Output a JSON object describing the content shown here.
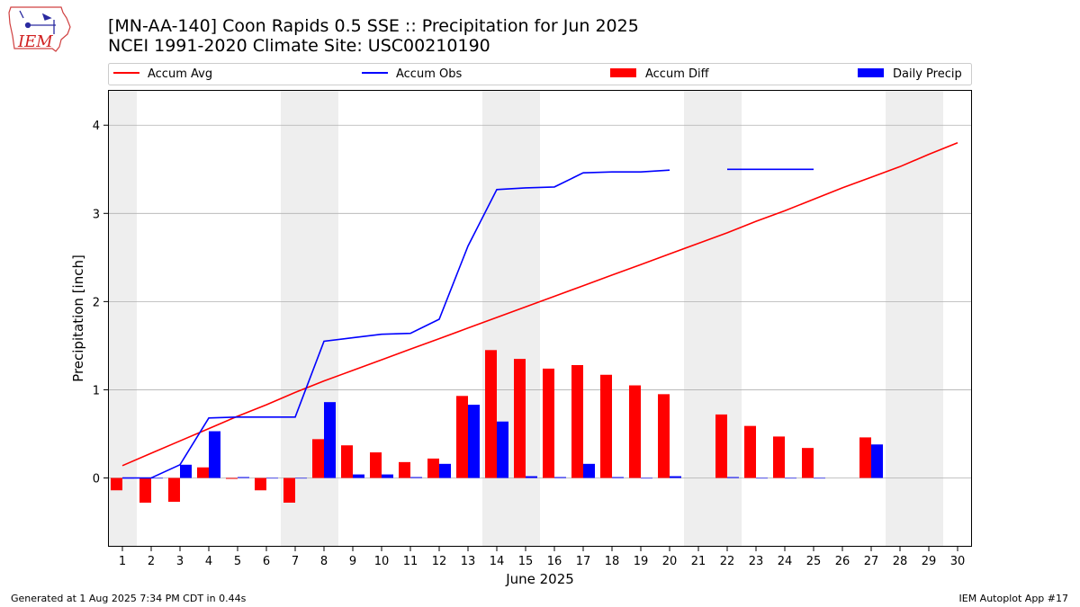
{
  "logo": {
    "text": "IEM"
  },
  "footer": {
    "generated": "Generated at 1 Aug 2025 7:34 PM CDT in 0.44s",
    "app": "IEM Autoplot App #17"
  },
  "colors": {
    "avg": "#ff0000",
    "obs": "#0000ff",
    "diff": "#ff0000",
    "daily": "#0000ff",
    "weekend": "#eeeeee",
    "grid": "#b0b0b0"
  },
  "chart_data": {
    "type": "bar",
    "title": "[MN-AA-140] Coon Rapids 0.5 SSE :: Precipitation for Jun 2025",
    "subtitle": "NCEI 1991-2020 Climate Site: USC00210190",
    "xlabel": "June 2025",
    "ylabel": "Precipitation [inch]",
    "ylim": [
      -0.78,
      4.4
    ],
    "yticks": [
      0,
      1,
      2,
      3,
      4
    ],
    "grid": "y",
    "legend": "top",
    "weekend_days": [
      [
        1
      ],
      [
        7,
        8
      ],
      [
        14,
        15
      ],
      [
        21,
        22
      ],
      [
        28,
        29
      ]
    ],
    "days": [
      1,
      2,
      3,
      4,
      5,
      6,
      7,
      8,
      9,
      10,
      11,
      12,
      13,
      14,
      15,
      16,
      17,
      18,
      19,
      20,
      21,
      22,
      23,
      24,
      25,
      26,
      27,
      28,
      29,
      30
    ],
    "series": [
      {
        "name": "Accum Avg",
        "type": "line",
        "values": [
          0.14,
          0.28,
          0.42,
          0.56,
          0.7,
          0.83,
          0.97,
          1.1,
          1.22,
          1.34,
          1.46,
          1.58,
          1.7,
          1.82,
          1.94,
          2.06,
          2.18,
          2.3,
          2.42,
          2.54,
          2.66,
          2.78,
          2.91,
          3.03,
          3.16,
          3.29,
          3.41,
          3.53,
          3.67,
          3.8
        ]
      },
      {
        "name": "Accum Obs",
        "type": "line",
        "values": [
          0.0,
          0.0,
          0.15,
          0.68,
          0.69,
          0.69,
          0.69,
          1.55,
          1.59,
          1.63,
          1.64,
          1.8,
          2.63,
          3.27,
          3.29,
          3.3,
          3.46,
          3.47,
          3.47,
          3.49,
          null,
          3.5,
          3.5,
          3.5,
          3.5,
          null,
          null,
          null,
          null,
          null
        ]
      },
      {
        "name": "Accum Diff",
        "type": "bar",
        "values": [
          -0.14,
          -0.28,
          -0.27,
          0.12,
          -0.01,
          -0.14,
          -0.28,
          0.44,
          0.37,
          0.29,
          0.18,
          0.22,
          0.93,
          1.45,
          1.35,
          1.24,
          1.28,
          1.17,
          1.05,
          0.95,
          null,
          0.72,
          0.59,
          0.47,
          0.34,
          null,
          0.46,
          null,
          null,
          null
        ]
      },
      {
        "name": "Daily Precip",
        "type": "bar",
        "values": [
          0.0,
          0.0,
          0.15,
          0.53,
          0.01,
          0.0,
          0.0,
          0.86,
          0.04,
          0.04,
          0.01,
          0.16,
          0.83,
          0.64,
          0.02,
          0.01,
          0.16,
          0.01,
          0.0,
          0.02,
          null,
          0.01,
          0.0,
          0.0,
          0.0,
          null,
          0.38,
          null,
          null,
          null
        ]
      }
    ]
  }
}
